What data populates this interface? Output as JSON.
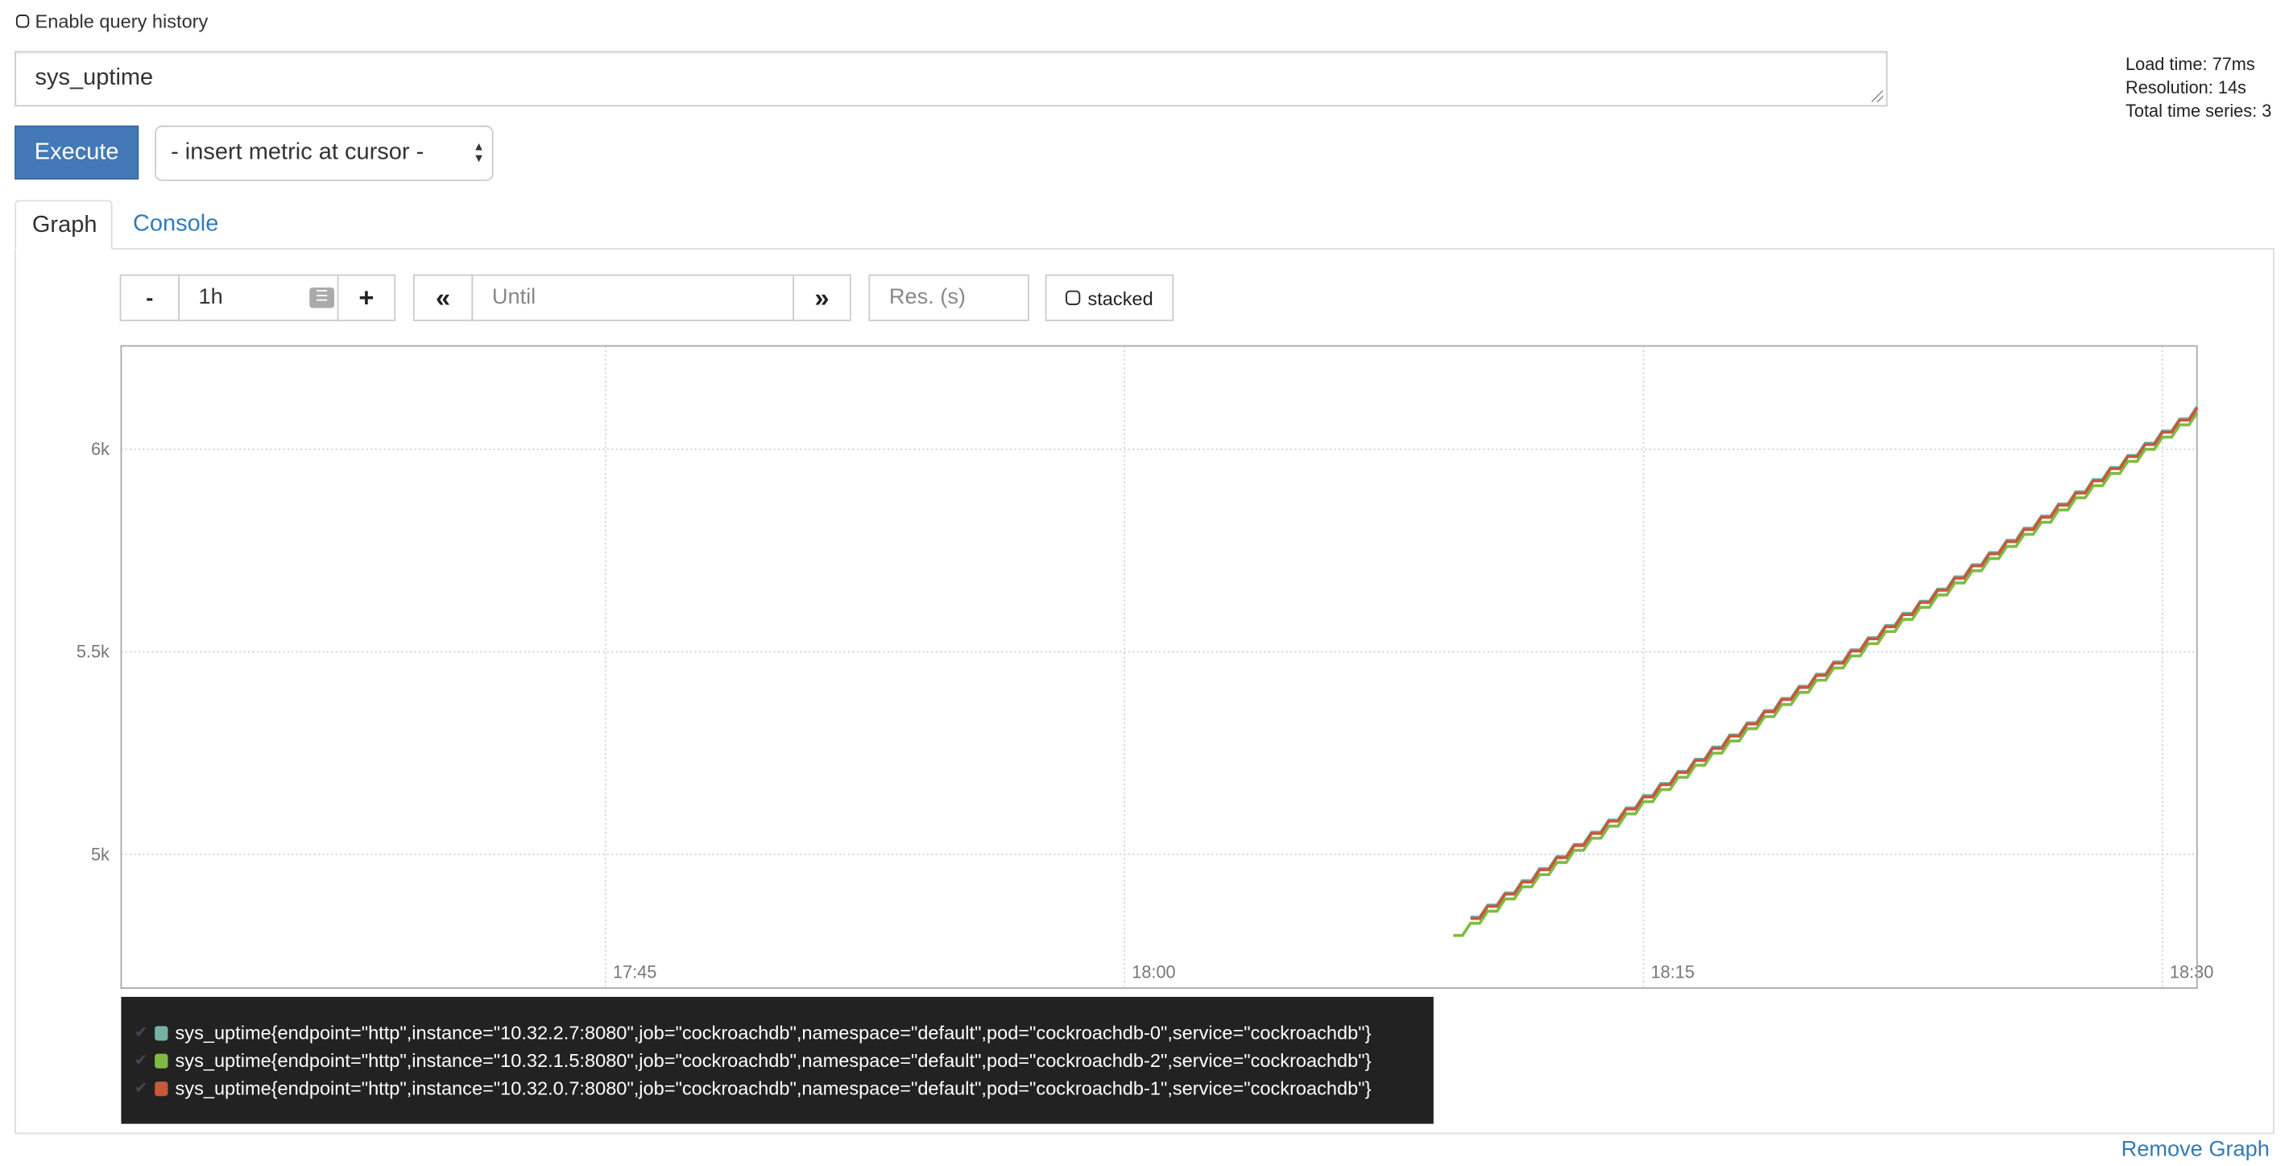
{
  "query_history": {
    "label": "Enable query history",
    "checked": false
  },
  "expression": {
    "value": "sys_uptime"
  },
  "execute_label": "Execute",
  "metric_select": {
    "selected": "- insert metric at cursor -"
  },
  "stats": {
    "load_time": "Load time: 77ms",
    "resolution": "Resolution: 14s",
    "total_series": "Total time series: 3"
  },
  "tabs": [
    {
      "label": "Graph",
      "active": true
    },
    {
      "label": "Console",
      "active": false
    }
  ],
  "controls": {
    "minus": "-",
    "range": "1h",
    "plus": "+",
    "back": "«",
    "until_placeholder": "Until",
    "forward": "»",
    "res_placeholder": "Res. (s)",
    "stacked_label": "stacked"
  },
  "remove_graph": "Remove Graph",
  "chart_data": {
    "type": "line",
    "interpolation": "step",
    "xlim": [
      "17:31:00",
      "18:31:00"
    ],
    "ylim": [
      4670,
      6255
    ],
    "x_ticks": [
      "17:45",
      "18:00",
      "18:15",
      "18:30"
    ],
    "y_ticks": [
      {
        "value": 5000,
        "label": "5k"
      },
      {
        "value": 5500,
        "label": "5.5k"
      },
      {
        "value": 6000,
        "label": "6k"
      }
    ],
    "grid": true,
    "legend_position": "bottom",
    "x": [
      "18:09:30",
      "18:10:00",
      "18:10:30",
      "18:11:00",
      "18:11:30",
      "18:12:00",
      "18:12:30",
      "18:13:00",
      "18:13:30",
      "18:14:00",
      "18:14:30",
      "18:15:00",
      "18:15:30",
      "18:16:00",
      "18:16:30",
      "18:17:00",
      "18:17:30",
      "18:18:00",
      "18:18:30",
      "18:19:00",
      "18:19:30",
      "18:20:00",
      "18:20:30",
      "18:21:00",
      "18:21:30",
      "18:22:00",
      "18:22:30",
      "18:23:00",
      "18:23:30",
      "18:24:00",
      "18:24:30",
      "18:25:00",
      "18:25:30",
      "18:26:00",
      "18:26:30",
      "18:27:00",
      "18:27:30",
      "18:28:00",
      "18:28:30",
      "18:29:00",
      "18:29:30",
      "18:30:00",
      "18:30:30",
      "18:31:00"
    ],
    "series": [
      {
        "name": "sys_uptime{endpoint=\"http\",instance=\"10.32.2.7:8080\",job=\"cockroachdb\",namespace=\"default\",pod=\"cockroachdb-0\",service=\"cockroachdb\"}",
        "color": "#72b3a6",
        "values": [
          null,
          4845,
          4875,
          4905,
          4935,
          4965,
          4995,
          5025,
          5055,
          5085,
          5115,
          5145,
          5175,
          5205,
          5235,
          5265,
          5295,
          5325,
          5355,
          5385,
          5415,
          5445,
          5475,
          5505,
          5535,
          5565,
          5595,
          5625,
          5655,
          5685,
          5715,
          5745,
          5775,
          5805,
          5835,
          5865,
          5895,
          5925,
          5955,
          5985,
          6015,
          6045,
          6075,
          6105
        ]
      },
      {
        "name": "sys_uptime{endpoint=\"http\",instance=\"10.32.1.5:8080\",job=\"cockroachdb\",namespace=\"default\",pod=\"cockroachdb-2\",service=\"cockroachdb\"}",
        "color": "#7fbb42",
        "values": [
          4800,
          4830,
          4860,
          4890,
          4920,
          4950,
          4980,
          5010,
          5040,
          5070,
          5100,
          5130,
          5160,
          5190,
          5220,
          5250,
          5280,
          5310,
          5340,
          5370,
          5400,
          5430,
          5460,
          5490,
          5520,
          5550,
          5580,
          5610,
          5640,
          5670,
          5700,
          5730,
          5760,
          5790,
          5820,
          5850,
          5880,
          5910,
          5940,
          5970,
          6000,
          6030,
          6060,
          6090
        ]
      },
      {
        "name": "sys_uptime{endpoint=\"http\",instance=\"10.32.0.7:8080\",job=\"cockroachdb\",namespace=\"default\",pod=\"cockroachdb-1\",service=\"cockroachdb\"}",
        "color": "#c8573c",
        "values": [
          null,
          4842,
          4872,
          4902,
          4932,
          4962,
          4992,
          5022,
          5052,
          5082,
          5112,
          5142,
          5172,
          5202,
          5232,
          5262,
          5292,
          5322,
          5352,
          5382,
          5412,
          5442,
          5472,
          5502,
          5532,
          5562,
          5592,
          5622,
          5652,
          5682,
          5712,
          5742,
          5772,
          5802,
          5832,
          5862,
          5892,
          5922,
          5952,
          5982,
          6012,
          6042,
          6072,
          6102
        ]
      }
    ]
  }
}
